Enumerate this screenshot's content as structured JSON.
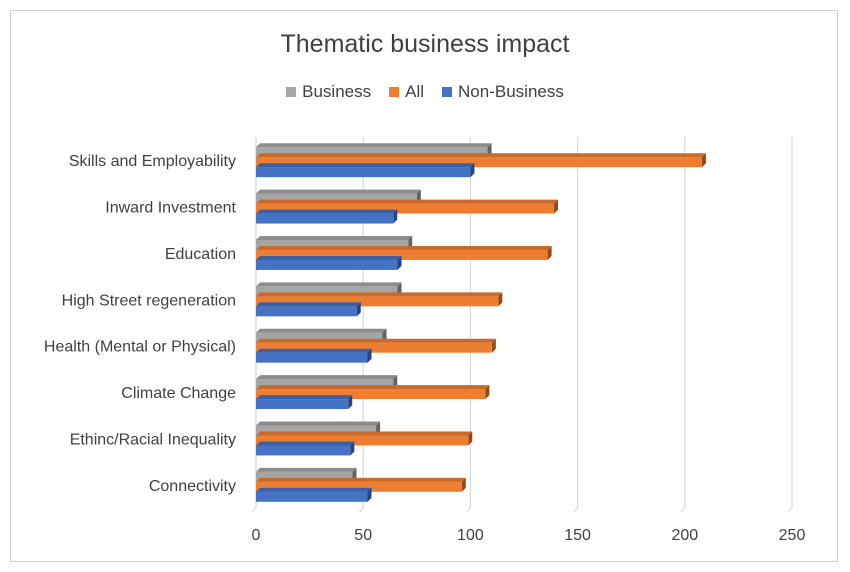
{
  "chart_data": {
    "type": "bar",
    "orientation": "horizontal",
    "title": "Thematic business impact",
    "categories": [
      "Skills and Employability",
      "Inward Investment",
      "Education",
      "High Street regeneration",
      "Health (Mental or Physical)",
      "Climate Change",
      "Ethinc/Racial Inequality",
      "Connectivity"
    ],
    "series": [
      {
        "name": "Business",
        "color": "#a5a5a5",
        "values": [
          108,
          75,
          71,
          66,
          59,
          64,
          56,
          45
        ]
      },
      {
        "name": "All",
        "color": "#ed7d31",
        "values": [
          208,
          139,
          136,
          113,
          110,
          107,
          99,
          96
        ]
      },
      {
        "name": "Non-Business",
        "color": "#4472c4",
        "values": [
          100,
          64,
          66,
          47,
          52,
          43,
          44,
          52
        ]
      }
    ],
    "xlim": [
      0,
      250
    ],
    "xticks": [
      0,
      50,
      100,
      150,
      200,
      250
    ],
    "grid": true,
    "legend_position": "top"
  }
}
